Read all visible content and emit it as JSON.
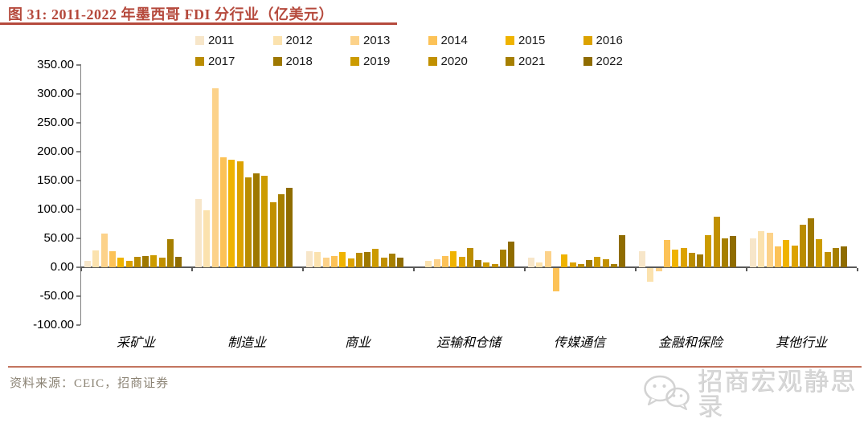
{
  "figure": {
    "title": "图 31:  2011-2022 年墨西哥 FDI 分行业（亿美元）",
    "accent_color": "#B5493C",
    "divider_color": "#C3745F",
    "source_label": "资料来源：CEIC，招商证券",
    "watermark": "招商宏观静思录"
  },
  "chart_data": {
    "type": "bar",
    "title": "2011-2022 年墨西哥 FDI 分行业（亿美元）",
    "unit": "亿美元",
    "legend_position": "top",
    "grid": false,
    "ylim": [
      -100,
      350
    ],
    "ytick_step": 50,
    "ytick_values": [
      350,
      300,
      250,
      200,
      150,
      100,
      50,
      0,
      -50,
      -100
    ],
    "ytick_labels": [
      "350.00",
      "300.00",
      "250.00",
      "200.00",
      "150.00",
      "100.00",
      "50.00",
      "0.00",
      "-50.00",
      "-100.00"
    ],
    "categories": [
      "采矿业",
      "制造业",
      "商业",
      "运输和仓储",
      "传媒通信",
      "金融和保险",
      "其他行业"
    ],
    "year_colors": {
      "2011": "#F7E6C9",
      "2012": "#FBE2AE",
      "2013": "#FCD28A",
      "2014": "#FCC257",
      "2015": "#EFB300",
      "2016": "#DCA200",
      "2017": "#BA8C00",
      "2018": "#9E7800",
      "2019": "#CC9B00",
      "2020": "#C19000",
      "2021": "#A67F00",
      "2022": "#8F6C00"
    },
    "series": [
      {
        "name": "2011",
        "values": [
          11,
          118,
          28,
          null,
          17,
          28,
          50
        ]
      },
      {
        "name": "2012",
        "values": [
          29,
          99,
          27,
          11,
          8,
          -24,
          62
        ]
      },
      {
        "name": "2013",
        "values": [
          58,
          310,
          17,
          14,
          28,
          -6,
          60
        ]
      },
      {
        "name": "2014",
        "values": [
          28,
          190,
          20,
          19,
          -40,
          47,
          36
        ]
      },
      {
        "name": "2015",
        "values": [
          17,
          186,
          26,
          28,
          22,
          31,
          47
        ]
      },
      {
        "name": "2016",
        "values": [
          11,
          183,
          15,
          18,
          8,
          33,
          38
        ]
      },
      {
        "name": "2017",
        "values": [
          18,
          155,
          25,
          33,
          5,
          25,
          74
        ]
      },
      {
        "name": "2018",
        "values": [
          19,
          162,
          27,
          12,
          13,
          22,
          85
        ]
      },
      {
        "name": "2019",
        "values": [
          21,
          158,
          32,
          8,
          18,
          56,
          48
        ]
      },
      {
        "name": "2020",
        "values": [
          16,
          112,
          16,
          5,
          14,
          88,
          27
        ]
      },
      {
        "name": "2021",
        "values": [
          49,
          126,
          23,
          30,
          6,
          50,
          34
        ]
      },
      {
        "name": "2022",
        "values": [
          18,
          137,
          17,
          44,
          56,
          54,
          36
        ]
      }
    ]
  }
}
